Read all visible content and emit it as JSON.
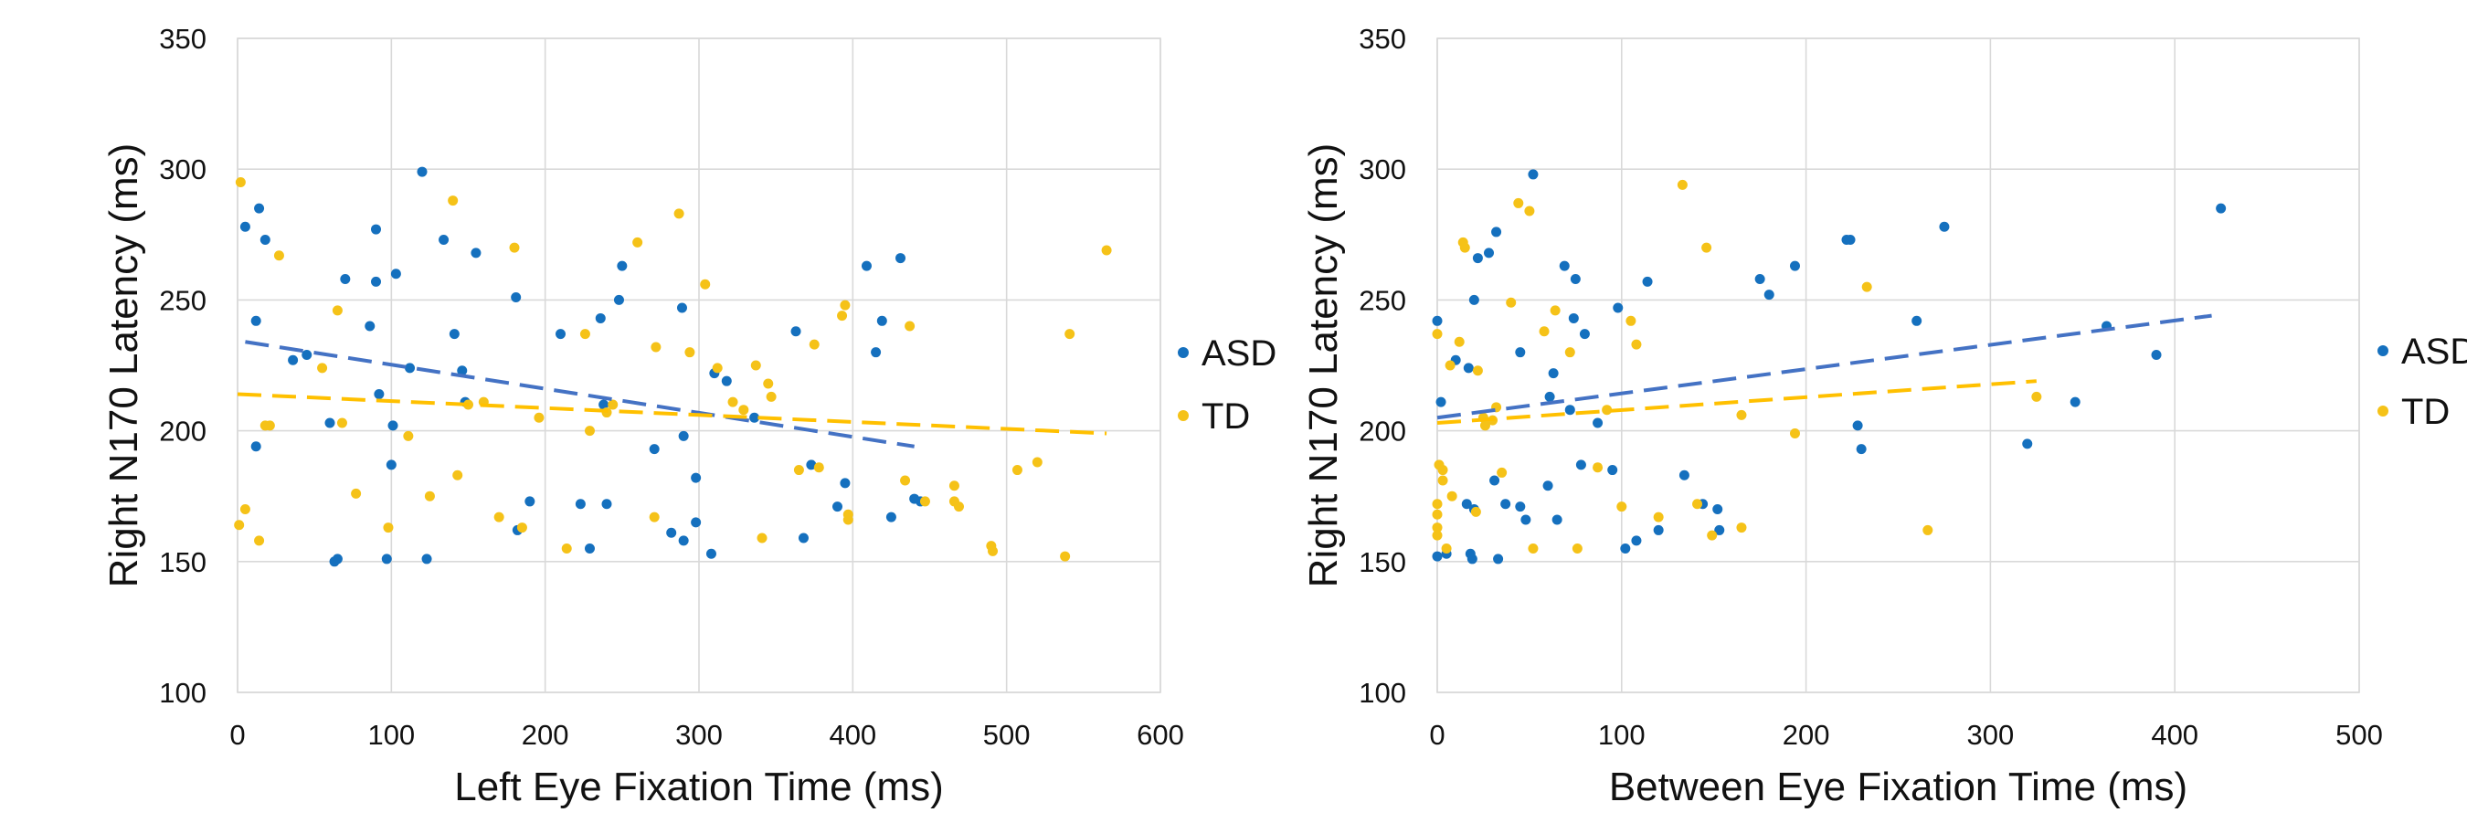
{
  "chart_data": [
    {
      "type": "scatter",
      "title": "",
      "xlabel": "Left Eye Fixation Time (ms)",
      "ylabel": "Right N170 Latency (ms)",
      "xlim": [
        0,
        600
      ],
      "ylim": [
        100,
        350
      ],
      "xticks": [
        "0",
        "100",
        "200",
        "300",
        "400",
        "500",
        "600"
      ],
      "yticks": [
        "100",
        "150",
        "200",
        "250",
        "300",
        "350"
      ],
      "grid": true,
      "legend": "right",
      "series": [
        {
          "name": "ASD",
          "color": "#1570be",
          "points": [
            [
              5,
              278
            ],
            [
              12,
              242
            ],
            [
              14,
              285
            ],
            [
              18,
              273
            ],
            [
              12,
              194
            ],
            [
              36,
              227
            ],
            [
              45,
              229
            ],
            [
              60,
              203
            ],
            [
              63,
              150
            ],
            [
              65,
              151
            ],
            [
              70,
              258
            ],
            [
              86,
              240
            ],
            [
              90,
              257
            ],
            [
              90,
              277
            ],
            [
              92,
              214
            ],
            [
              97,
              151
            ],
            [
              100,
              187
            ],
            [
              101,
              202
            ],
            [
              103,
              260
            ],
            [
              112,
              224
            ],
            [
              120,
              299
            ],
            [
              123,
              151
            ],
            [
              134,
              273
            ],
            [
              141,
              237
            ],
            [
              146,
              223
            ],
            [
              148,
              211
            ],
            [
              155,
              268
            ],
            [
              181,
              251
            ],
            [
              182,
              162
            ],
            [
              190,
              173
            ],
            [
              210,
              237
            ],
            [
              223,
              172
            ],
            [
              229,
              155
            ],
            [
              236,
              243
            ],
            [
              238,
              210
            ],
            [
              240,
              172
            ],
            [
              248,
              250
            ],
            [
              250,
              263
            ],
            [
              271,
              193
            ],
            [
              282,
              161
            ],
            [
              289,
              247
            ],
            [
              290,
              198
            ],
            [
              290,
              158
            ],
            [
              298,
              182
            ],
            [
              298,
              165
            ],
            [
              308,
              153
            ],
            [
              310,
              222
            ],
            [
              318,
              219
            ],
            [
              336,
              205
            ],
            [
              363,
              238
            ],
            [
              368,
              159
            ],
            [
              373,
              187
            ],
            [
              390,
              171
            ],
            [
              395,
              180
            ],
            [
              409,
              263
            ],
            [
              415,
              230
            ],
            [
              419,
              242
            ],
            [
              425,
              167
            ],
            [
              431,
              266
            ],
            [
              440,
              174
            ],
            [
              444,
              173
            ]
          ]
        },
        {
          "name": "TD",
          "color": "#f5c218",
          "points": [
            [
              1,
              164
            ],
            [
              2,
              295
            ],
            [
              5,
              170
            ],
            [
              14,
              158
            ],
            [
              18,
              202
            ],
            [
              21,
              202
            ],
            [
              27,
              267
            ],
            [
              55,
              224
            ],
            [
              65,
              246
            ],
            [
              68,
              203
            ],
            [
              77,
              176
            ],
            [
              98,
              163
            ],
            [
              111,
              198
            ],
            [
              125,
              175
            ],
            [
              140,
              288
            ],
            [
              143,
              183
            ],
            [
              150,
              210
            ],
            [
              160,
              211
            ],
            [
              170,
              167
            ],
            [
              180,
              270
            ],
            [
              185,
              163
            ],
            [
              196,
              205
            ],
            [
              214,
              155
            ],
            [
              226,
              237
            ],
            [
              229,
              200
            ],
            [
              240,
              207
            ],
            [
              244,
              210
            ],
            [
              260,
              272
            ],
            [
              271,
              167
            ],
            [
              272,
              232
            ],
            [
              287,
              283
            ],
            [
              294,
              230
            ],
            [
              304,
              256
            ],
            [
              312,
              224
            ],
            [
              322,
              211
            ],
            [
              329,
              208
            ],
            [
              337,
              225
            ],
            [
              341,
              159
            ],
            [
              345,
              218
            ],
            [
              347,
              213
            ],
            [
              365,
              185
            ],
            [
              375,
              233
            ],
            [
              378,
              186
            ],
            [
              393,
              244
            ],
            [
              395,
              248
            ],
            [
              397,
              166
            ],
            [
              397,
              168
            ],
            [
              434,
              181
            ],
            [
              437,
              240
            ],
            [
              447,
              173
            ],
            [
              466,
              179
            ],
            [
              466,
              173
            ],
            [
              469,
              171
            ],
            [
              490,
              156
            ],
            [
              491,
              154
            ],
            [
              507,
              185
            ],
            [
              520,
              188
            ],
            [
              538,
              152
            ],
            [
              541,
              237
            ],
            [
              565,
              269
            ]
          ]
        }
      ],
      "trendlines": [
        {
          "name": "ASD",
          "x": [
            5,
            440
          ],
          "y": [
            234,
            194
          ],
          "style": "dashed"
        },
        {
          "name": "TD",
          "x": [
            0,
            565
          ],
          "y": [
            214,
            199
          ],
          "style": "dashed"
        }
      ]
    },
    {
      "type": "scatter",
      "title": "",
      "xlabel": "Between Eye Fixation Time (ms)",
      "ylabel": "Right N170 Latency (ms)",
      "xlim": [
        0,
        500
      ],
      "ylim": [
        100,
        350
      ],
      "xticks": [
        "0",
        "100",
        "200",
        "300",
        "400",
        "500"
      ],
      "yticks": [
        "100",
        "150",
        "200",
        "250",
        "300",
        "350"
      ],
      "grid": true,
      "legend": "right",
      "series": [
        {
          "name": "ASD",
          "color": "#1570be",
          "points": [
            [
              0,
              242
            ],
            [
              0,
              152
            ],
            [
              2,
              211
            ],
            [
              5,
              153
            ],
            [
              10,
              227
            ],
            [
              16,
              172
            ],
            [
              17,
              224
            ],
            [
              18,
              153
            ],
            [
              19,
              151
            ],
            [
              20,
              170
            ],
            [
              20,
              250
            ],
            [
              22,
              266
            ],
            [
              28,
              268
            ],
            [
              31,
              181
            ],
            [
              32,
              276
            ],
            [
              33,
              151
            ],
            [
              37,
              172
            ],
            [
              45,
              230
            ],
            [
              45,
              171
            ],
            [
              48,
              166
            ],
            [
              52,
              298
            ],
            [
              60,
              179
            ],
            [
              61,
              213
            ],
            [
              63,
              222
            ],
            [
              65,
              166
            ],
            [
              69,
              263
            ],
            [
              72,
              208
            ],
            [
              74,
              243
            ],
            [
              75,
              258
            ],
            [
              78,
              187
            ],
            [
              80,
              237
            ],
            [
              87,
              203
            ],
            [
              95,
              185
            ],
            [
              98,
              247
            ],
            [
              102,
              155
            ],
            [
              108,
              158
            ],
            [
              114,
              257
            ],
            [
              120,
              162
            ],
            [
              134,
              183
            ],
            [
              144,
              172
            ],
            [
              152,
              170
            ],
            [
              153,
              162
            ],
            [
              175,
              258
            ],
            [
              180,
              252
            ],
            [
              194,
              263
            ],
            [
              222,
              273
            ],
            [
              224,
              273
            ],
            [
              228,
              202
            ],
            [
              230,
              193
            ],
            [
              260,
              242
            ],
            [
              275,
              278
            ],
            [
              320,
              195
            ],
            [
              346,
              211
            ],
            [
              363,
              240
            ],
            [
              390,
              229
            ],
            [
              425,
              285
            ]
          ]
        },
        {
          "name": "TD",
          "color": "#f5c218",
          "points": [
            [
              0,
              237
            ],
            [
              0,
              172
            ],
            [
              0,
              163
            ],
            [
              0,
              168
            ],
            [
              0,
              160
            ],
            [
              1,
              187
            ],
            [
              3,
              181
            ],
            [
              3,
              185
            ],
            [
              5,
              155
            ],
            [
              7,
              225
            ],
            [
              8,
              175
            ],
            [
              12,
              234
            ],
            [
              14,
              272
            ],
            [
              15,
              270
            ],
            [
              21,
              169
            ],
            [
              22,
              223
            ],
            [
              25,
              205
            ],
            [
              26,
              202
            ],
            [
              30,
              204
            ],
            [
              32,
              209
            ],
            [
              35,
              184
            ],
            [
              40,
              249
            ],
            [
              44,
              287
            ],
            [
              50,
              284
            ],
            [
              52,
              155
            ],
            [
              58,
              238
            ],
            [
              64,
              246
            ],
            [
              72,
              230
            ],
            [
              76,
              155
            ],
            [
              87,
              186
            ],
            [
              92,
              208
            ],
            [
              100,
              171
            ],
            [
              105,
              242
            ],
            [
              108,
              233
            ],
            [
              120,
              167
            ],
            [
              133,
              294
            ],
            [
              141,
              172
            ],
            [
              146,
              270
            ],
            [
              149,
              160
            ],
            [
              165,
              163
            ],
            [
              165,
              206
            ],
            [
              194,
              199
            ],
            [
              233,
              255
            ],
            [
              266,
              162
            ],
            [
              325,
              213
            ]
          ]
        }
      ],
      "trendlines": [
        {
          "name": "ASD",
          "x": [
            0,
            420
          ],
          "y": [
            205,
            244
          ],
          "style": "dashed"
        },
        {
          "name": "TD",
          "x": [
            0,
            325
          ],
          "y": [
            203,
            219
          ],
          "style": "dashed"
        }
      ]
    }
  ]
}
